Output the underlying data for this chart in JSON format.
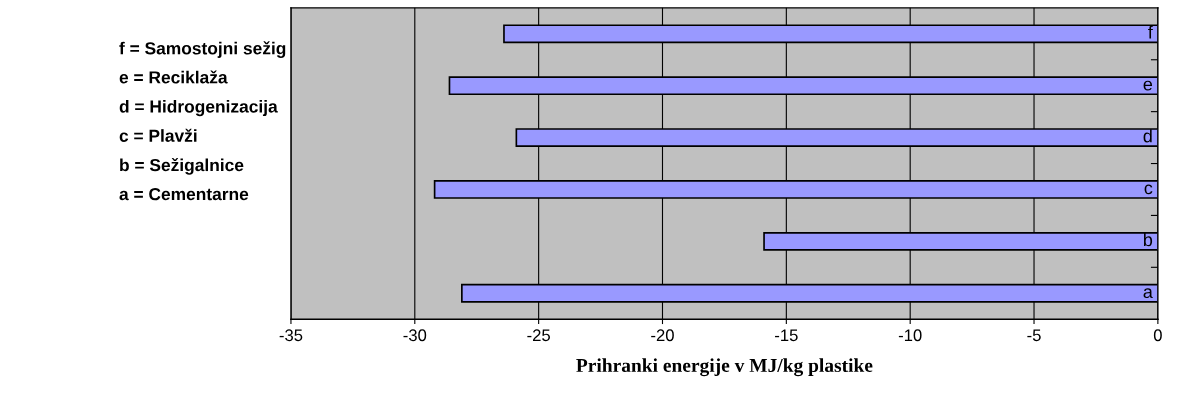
{
  "chart_data": {
    "type": "bar",
    "orientation": "horizontal",
    "categories": [
      "f",
      "e",
      "d",
      "c",
      "b",
      "a"
    ],
    "values": [
      -26.4,
      -28.6,
      -25.9,
      -29.2,
      -15.9,
      -28.1
    ],
    "color": "#9999ff",
    "xlabel": "Prihranki energije v MJ/kg plastike",
    "xlim": [
      -35,
      0
    ],
    "xticks": [
      -35,
      -30,
      -25,
      -20,
      -15,
      -10,
      -5,
      0
    ],
    "grid": "x",
    "legend": false,
    "annotations": [
      "f = Samostojni sežig",
      "e = Reciklaža",
      "d = Hidrogenizacija",
      "c = Plavži",
      "b = Sežigalnice",
      "a = Cementarne"
    ]
  }
}
